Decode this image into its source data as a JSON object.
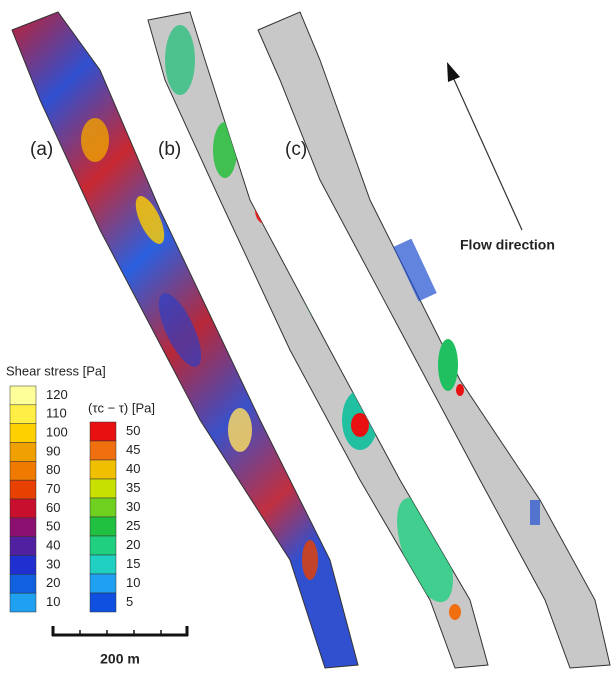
{
  "panels": [
    {
      "label": "(a)"
    },
    {
      "label": "(b)"
    },
    {
      "label": "(c)"
    }
  ],
  "flow_label": "Flow direction",
  "scale_bar": "200 m",
  "legend_shear": {
    "title": "Shear stress [Pa]",
    "entries": [
      {
        "value": 120,
        "color": "#ffff99"
      },
      {
        "value": 110,
        "color": "#ffee44"
      },
      {
        "value": 100,
        "color": "#ffd000"
      },
      {
        "value": 90,
        "color": "#f0a000"
      },
      {
        "value": 80,
        "color": "#f07a00"
      },
      {
        "value": 70,
        "color": "#e84000"
      },
      {
        "value": 60,
        "color": "#c8102e"
      },
      {
        "value": 50,
        "color": "#8c1070"
      },
      {
        "value": 40,
        "color": "#5020a0"
      },
      {
        "value": 30,
        "color": "#2030d0"
      },
      {
        "value": 20,
        "color": "#1060e0"
      },
      {
        "value": 10,
        "color": "#20a0f0"
      }
    ]
  },
  "legend_excess": {
    "title": "(τc − τ) [Pa]",
    "entries": [
      {
        "value": 50,
        "color": "#e81010"
      },
      {
        "value": 45,
        "color": "#f07010"
      },
      {
        "value": 40,
        "color": "#f0c000"
      },
      {
        "value": 35,
        "color": "#c8e000"
      },
      {
        "value": 30,
        "color": "#70d020"
      },
      {
        "value": 25,
        "color": "#20c040"
      },
      {
        "value": 20,
        "color": "#20d080"
      },
      {
        "value": 15,
        "color": "#20d0c0"
      },
      {
        "value": 10,
        "color": "#20a0f0"
      },
      {
        "value": 5,
        "color": "#1050e0"
      }
    ]
  }
}
